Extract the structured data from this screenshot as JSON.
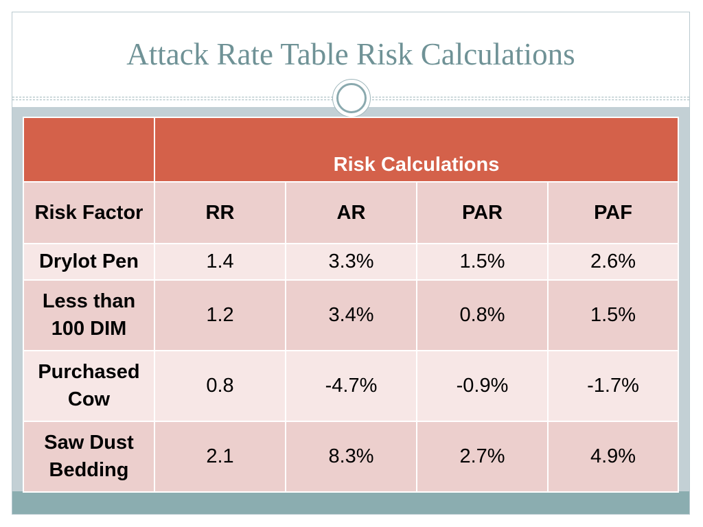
{
  "slide": {
    "title": "Attack Rate Table Risk Calculations"
  },
  "table": {
    "group_header": "Risk Calculations",
    "columns": [
      "Risk Factor",
      "RR",
      "AR",
      "PAR",
      "PAF"
    ],
    "rows": [
      {
        "factor": "Drylot Pen",
        "rr": "1.4",
        "ar": "3.3%",
        "par": "1.5%",
        "paf": "2.6%"
      },
      {
        "factor": "Less than 100 DIM",
        "rr": "1.2",
        "ar": "3.4%",
        "par": "0.8%",
        "paf": "1.5%"
      },
      {
        "factor": "Purchased Cow",
        "rr": "0.8",
        "ar": "-4.7%",
        "par": "-0.9%",
        "paf": "-1.7%"
      },
      {
        "factor": "Saw Dust Bedding",
        "rr": "2.1",
        "ar": "8.3%",
        "par": "2.7%",
        "paf": "4.9%"
      }
    ]
  },
  "colors": {
    "header_red": "#d4614a",
    "row_dark": "#eccfcd",
    "row_light": "#f7e7e6",
    "title_teal": "#6f9296",
    "footer_band": "#8badb0"
  }
}
